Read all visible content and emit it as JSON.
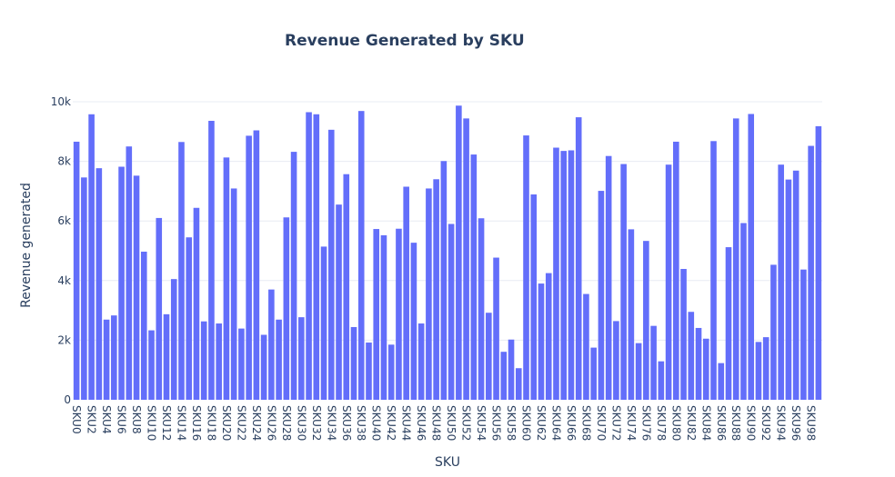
{
  "chart_data": {
    "type": "bar",
    "title": "Revenue Generated by SKU",
    "xlabel": "SKU",
    "ylabel": "Revenue generated",
    "ylim": [
      0,
      10000
    ],
    "yticks": [
      {
        "value": 0,
        "label": "0"
      },
      {
        "value": 2000,
        "label": "2k"
      },
      {
        "value": 4000,
        "label": "4k"
      },
      {
        "value": 6000,
        "label": "6k"
      },
      {
        "value": 8000,
        "label": "8k"
      },
      {
        "value": 10000,
        "label": "10k"
      }
    ],
    "grid": true,
    "bar_color": "#636efa",
    "categories": [
      "SKU0",
      "SKU1",
      "SKU2",
      "SKU3",
      "SKU4",
      "SKU5",
      "SKU6",
      "SKU7",
      "SKU8",
      "SKU9",
      "SKU10",
      "SKU11",
      "SKU12",
      "SKU13",
      "SKU14",
      "SKU15",
      "SKU16",
      "SKU17",
      "SKU18",
      "SKU19",
      "SKU20",
      "SKU21",
      "SKU22",
      "SKU23",
      "SKU24",
      "SKU25",
      "SKU26",
      "SKU27",
      "SKU28",
      "SKU29",
      "SKU30",
      "SKU31",
      "SKU32",
      "SKU33",
      "SKU34",
      "SKU35",
      "SKU36",
      "SKU37",
      "SKU38",
      "SKU39",
      "SKU40",
      "SKU41",
      "SKU42",
      "SKU43",
      "SKU44",
      "SKU45",
      "SKU46",
      "SKU47",
      "SKU48",
      "SKU49",
      "SKU50",
      "SKU51",
      "SKU52",
      "SKU53",
      "SKU54",
      "SKU55",
      "SKU56",
      "SKU57",
      "SKU58",
      "SKU59",
      "SKU60",
      "SKU61",
      "SKU62",
      "SKU63",
      "SKU64",
      "SKU65",
      "SKU66",
      "SKU67",
      "SKU68",
      "SKU69",
      "SKU70",
      "SKU71",
      "SKU72",
      "SKU73",
      "SKU74",
      "SKU75",
      "SKU76",
      "SKU77",
      "SKU78",
      "SKU79",
      "SKU80",
      "SKU81",
      "SKU82",
      "SKU83",
      "SKU84",
      "SKU85",
      "SKU86",
      "SKU87",
      "SKU88",
      "SKU89",
      "SKU90",
      "SKU91",
      "SKU92",
      "SKU93",
      "SKU94",
      "SKU95",
      "SKU96",
      "SKU97",
      "SKU98",
      "SKU99"
    ],
    "x_tick_labels": [
      "SKU0",
      "SKU2",
      "SKU4",
      "SKU6",
      "SKU8",
      "SKU10",
      "SKU12",
      "SKU14",
      "SKU16",
      "SKU18",
      "SKU20",
      "SKU22",
      "SKU24",
      "SKU26",
      "SKU28",
      "SKU30",
      "SKU32",
      "SKU34",
      "SKU36",
      "SKU38",
      "SKU40",
      "SKU42",
      "SKU44",
      "SKU46",
      "SKU48",
      "SKU50",
      "SKU52",
      "SKU54",
      "SKU56",
      "SKU58",
      "SKU60",
      "SKU62",
      "SKU64",
      "SKU66",
      "SKU68",
      "SKU70",
      "SKU72",
      "SKU74",
      "SKU76",
      "SKU78",
      "SKU80",
      "SKU82",
      "SKU84",
      "SKU86",
      "SKU88",
      "SKU90",
      "SKU92",
      "SKU94",
      "SKU96",
      "SKU98"
    ],
    "values": [
      8660,
      7460,
      9580,
      7770,
      2690,
      2830,
      7820,
      8500,
      7520,
      4970,
      2330,
      6100,
      2870,
      4050,
      8650,
      5450,
      6440,
      2630,
      9360,
      2560,
      8130,
      7090,
      2390,
      8860,
      9040,
      2180,
      3700,
      2690,
      6120,
      8320,
      2770,
      9650,
      9580,
      5140,
      9060,
      6550,
      7570,
      2440,
      9690,
      1920,
      5730,
      5520,
      1850,
      5740,
      7150,
      5270,
      2560,
      7090,
      7400,
      8010,
      5900,
      9870,
      9440,
      8230,
      6090,
      2920,
      4770,
      1610,
      2020,
      1060,
      8870,
      6890,
      3900,
      4250,
      8460,
      8350,
      8370,
      9480,
      3550,
      1750,
      7010,
      8180,
      2640,
      7910,
      5720,
      1900,
      5330,
      2480,
      1290,
      7890,
      8660,
      4390,
      2950,
      2410,
      2050,
      8680,
      1230,
      5120,
      9440,
      5930,
      9590,
      1940,
      2100,
      4530,
      7890,
      7390,
      7690,
      4370,
      8520,
      9180
    ]
  }
}
